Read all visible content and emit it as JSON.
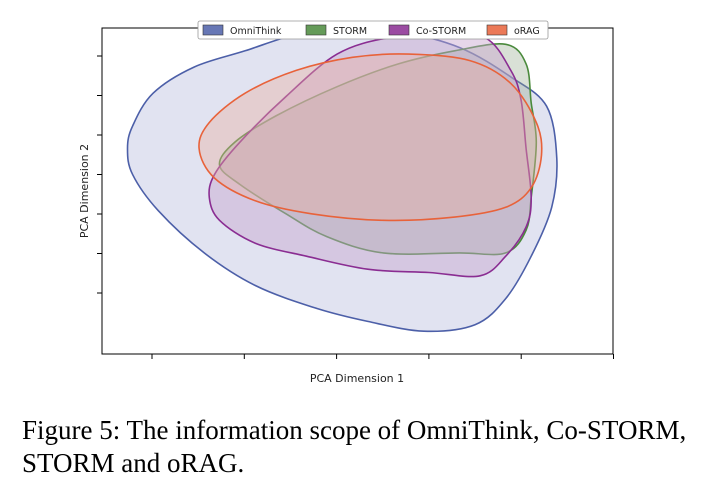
{
  "caption": "Figure 5: The information scope of OmniThink, Co-STORM, STORM and oRAG.",
  "chart_data": {
    "type": "area",
    "xlabel": "PCA Dimension 1",
    "ylabel": "PCA Dimension 2",
    "x_ticks": 6,
    "y_ticks": 7,
    "tick_labels_shown": false,
    "legend_position": "top-center",
    "series": [
      {
        "name": "OmniThink",
        "color": "#4c5fa8",
        "fill": "#dfe2f0",
        "boundary": [
          [
            0.05,
            0.63
          ],
          [
            0.06,
            0.7
          ],
          [
            0.1,
            0.8
          ],
          [
            0.18,
            0.88
          ],
          [
            0.28,
            0.93
          ],
          [
            0.38,
            0.98
          ],
          [
            0.48,
            1.0
          ],
          [
            0.58,
            0.99
          ],
          [
            0.7,
            0.94
          ],
          [
            0.8,
            0.85
          ],
          [
            0.87,
            0.76
          ],
          [
            0.89,
            0.6
          ],
          [
            0.88,
            0.45
          ],
          [
            0.84,
            0.3
          ],
          [
            0.79,
            0.17
          ],
          [
            0.73,
            0.09
          ],
          [
            0.63,
            0.07
          ],
          [
            0.52,
            0.1
          ],
          [
            0.42,
            0.14
          ],
          [
            0.3,
            0.21
          ],
          [
            0.2,
            0.31
          ],
          [
            0.11,
            0.44
          ],
          [
            0.06,
            0.55
          ]
        ]
      },
      {
        "name": "STORM",
        "color": "#4a8a3c",
        "fill": "#93a78a",
        "boundary": [
          [
            0.23,
            0.58
          ],
          [
            0.26,
            0.65
          ],
          [
            0.34,
            0.73
          ],
          [
            0.46,
            0.82
          ],
          [
            0.58,
            0.89
          ],
          [
            0.69,
            0.93
          ],
          [
            0.79,
            0.95
          ],
          [
            0.83,
            0.89
          ],
          [
            0.84,
            0.77
          ],
          [
            0.85,
            0.65
          ],
          [
            0.84,
            0.48
          ],
          [
            0.83,
            0.38
          ],
          [
            0.79,
            0.31
          ],
          [
            0.7,
            0.31
          ],
          [
            0.55,
            0.31
          ],
          [
            0.44,
            0.36
          ],
          [
            0.36,
            0.43
          ],
          [
            0.27,
            0.52
          ]
        ]
      },
      {
        "name": "Co-STORM",
        "color": "#8a2d92",
        "fill": "#c7a5cf",
        "boundary": [
          [
            0.21,
            0.48
          ],
          [
            0.22,
            0.55
          ],
          [
            0.27,
            0.65
          ],
          [
            0.36,
            0.79
          ],
          [
            0.46,
            0.92
          ],
          [
            0.56,
            0.97
          ],
          [
            0.66,
            0.98
          ],
          [
            0.75,
            0.97
          ],
          [
            0.8,
            0.87
          ],
          [
            0.82,
            0.78
          ],
          [
            0.83,
            0.63
          ],
          [
            0.84,
            0.48
          ],
          [
            0.83,
            0.39
          ],
          [
            0.79,
            0.3
          ],
          [
            0.74,
            0.24
          ],
          [
            0.64,
            0.25
          ],
          [
            0.52,
            0.26
          ],
          [
            0.4,
            0.3
          ],
          [
            0.3,
            0.34
          ],
          [
            0.23,
            0.41
          ]
        ]
      },
      {
        "name": "oRAG",
        "color": "#e8623a",
        "fill": "#e8b0a0",
        "boundary": [
          [
            0.19,
            0.63
          ],
          [
            0.21,
            0.71
          ],
          [
            0.28,
            0.8
          ],
          [
            0.38,
            0.87
          ],
          [
            0.49,
            0.91
          ],
          [
            0.6,
            0.92
          ],
          [
            0.72,
            0.9
          ],
          [
            0.8,
            0.83
          ],
          [
            0.85,
            0.71
          ],
          [
            0.86,
            0.61
          ],
          [
            0.84,
            0.51
          ],
          [
            0.79,
            0.45
          ],
          [
            0.69,
            0.42
          ],
          [
            0.55,
            0.41
          ],
          [
            0.41,
            0.43
          ],
          [
            0.3,
            0.47
          ],
          [
            0.22,
            0.54
          ]
        ]
      }
    ]
  }
}
